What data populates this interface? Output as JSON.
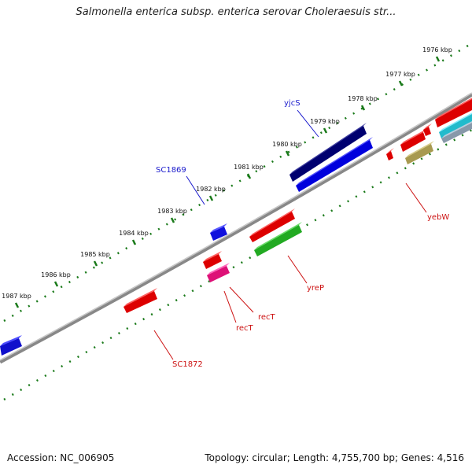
{
  "title": "Salmonella enterica subsp. enterica serovar Choleraesuis str...",
  "footer": {
    "accession": "Accession: NC_006905",
    "summary": "Topology: circular; Length: 4,755,700 bp; Genes: 4,516"
  },
  "colors": {
    "backbone": "#888888",
    "tick": "#1a7a1a",
    "forward_label": "#1a1acc",
    "reverse_label": "#cc1111"
  },
  "ticks": [
    {
      "label": "1976 kbp",
      "kbp": 1976
    },
    {
      "label": "1977 kbp",
      "kbp": 1977
    },
    {
      "label": "1978 kbp",
      "kbp": 1978
    },
    {
      "label": "1979 kbp",
      "kbp": 1979
    },
    {
      "label": "1980 kbp",
      "kbp": 1980
    },
    {
      "label": "1981 kbp",
      "kbp": 1981
    },
    {
      "label": "1982 kbp",
      "kbp": 1982
    },
    {
      "label": "1983 kbp",
      "kbp": 1983
    },
    {
      "label": "1984 kbp",
      "kbp": 1984
    },
    {
      "label": "1985 kbp",
      "kbp": 1985
    },
    {
      "label": "1986 kbp",
      "kbp": 1986
    },
    {
      "label": "1987 kbp",
      "kbp": 1987
    }
  ],
  "gene_labels": [
    {
      "name": "yjcS",
      "color": "#1a1acc"
    },
    {
      "name": "SC1869",
      "color": "#1a1acc"
    },
    {
      "name": "yebW",
      "color": "#cc1111"
    },
    {
      "name": "yreP",
      "color": "#cc1111"
    },
    {
      "name": "recT",
      "color": "#cc1111"
    },
    {
      "name": "recT",
      "color": "#cc1111"
    },
    {
      "name": "SC1872",
      "color": "#cc1111"
    }
  ]
}
